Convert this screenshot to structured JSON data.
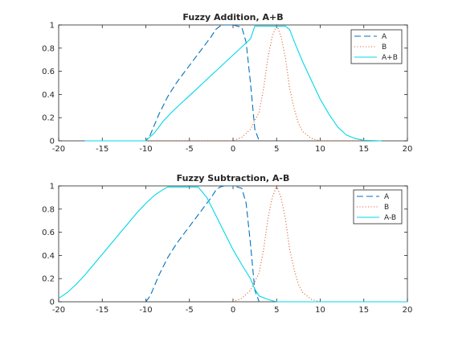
{
  "chart_data": [
    {
      "type": "line",
      "title": "Fuzzy Addition, A+B",
      "xlim": [
        -20,
        20
      ],
      "ylim": [
        0,
        1
      ],
      "xticks": [
        "-20",
        "-15",
        "-10",
        "-5",
        "0",
        "5",
        "10",
        "15",
        "20"
      ],
      "yticks": [
        "0",
        "0.2",
        "0.4",
        "0.6",
        "0.8",
        "1"
      ],
      "legend_position": "top-right",
      "series": [
        {
          "name": "A",
          "color": "#0072BD",
          "dash": "dashed",
          "x": [
            -17,
            -10,
            -9.5,
            -8.5,
            -7.5,
            -6.5,
            -5.5,
            -4.5,
            -3.5,
            -2.5,
            -2,
            -1.5,
            -1,
            0,
            1,
            1.5,
            2,
            2.5,
            3
          ],
          "y": [
            0,
            0,
            0.05,
            0.23,
            0.38,
            0.5,
            0.6,
            0.7,
            0.8,
            0.9,
            0.96,
            0.99,
            1,
            1,
            0.98,
            0.85,
            0.5,
            0.1,
            0
          ]
        },
        {
          "name": "B",
          "color": "#D95319",
          "dash": "dotted",
          "x": [
            -17,
            0,
            1,
            2,
            3,
            3.5,
            4,
            4.5,
            5,
            5.5,
            6,
            6.5,
            7,
            7.5,
            8,
            9,
            10,
            17
          ],
          "y": [
            0,
            0,
            0.03,
            0.1,
            0.25,
            0.45,
            0.72,
            0.9,
            1,
            0.9,
            0.72,
            0.45,
            0.28,
            0.15,
            0.08,
            0.02,
            0,
            0
          ]
        },
        {
          "name": "A+B",
          "color": "#00D8E8",
          "dash": "solid",
          "x": [
            -17,
            -10,
            -9,
            -8,
            -7,
            -6,
            -5,
            -4,
            -3,
            -2,
            -1,
            0,
            1,
            2,
            2.5,
            6,
            6.5,
            7,
            8,
            9,
            10,
            11,
            12,
            13,
            14,
            15,
            17
          ],
          "y": [
            0,
            0,
            0.07,
            0.17,
            0.25,
            0.32,
            0.39,
            0.46,
            0.53,
            0.6,
            0.67,
            0.74,
            0.81,
            0.88,
            0.99,
            0.99,
            0.96,
            0.86,
            0.68,
            0.52,
            0.36,
            0.23,
            0.12,
            0.05,
            0.02,
            0.005,
            0
          ]
        }
      ]
    },
    {
      "type": "line",
      "title": "Fuzzy Subtraction, A-B",
      "xlim": [
        -20,
        20
      ],
      "ylim": [
        0,
        1
      ],
      "xticks": [
        "-20",
        "-15",
        "-10",
        "-5",
        "0",
        "5",
        "10",
        "15",
        "20"
      ],
      "yticks": [
        "0",
        "0.2",
        "0.4",
        "0.6",
        "0.8",
        "1"
      ],
      "legend_position": "top-right",
      "series": [
        {
          "name": "A",
          "color": "#0072BD",
          "dash": "dashed",
          "x": [
            -10,
            -9.5,
            -8.5,
            -7.5,
            -6.5,
            -5.5,
            -4.5,
            -3.5,
            -2.5,
            -2,
            -1.5,
            -1,
            0,
            1,
            1.5,
            2,
            2.5,
            3
          ],
          "y": [
            0,
            0.05,
            0.23,
            0.38,
            0.5,
            0.6,
            0.7,
            0.8,
            0.9,
            0.96,
            0.99,
            1,
            1,
            0.98,
            0.85,
            0.5,
            0.1,
            0
          ]
        },
        {
          "name": "B",
          "color": "#D95319",
          "dash": "dotted",
          "x": [
            0,
            1,
            2,
            3,
            3.5,
            4,
            4.5,
            5,
            5.5,
            6,
            6.5,
            7,
            7.5,
            8,
            9,
            10
          ],
          "y": [
            0,
            0.03,
            0.1,
            0.25,
            0.45,
            0.72,
            0.9,
            1,
            0.9,
            0.72,
            0.45,
            0.28,
            0.15,
            0.08,
            0.02,
            0
          ]
        },
        {
          "name": "A-B",
          "color": "#00D8E8",
          "dash": "solid",
          "x": [
            -20,
            -19,
            -18,
            -17,
            -16,
            -15,
            -14,
            -13,
            -12,
            -11,
            -10,
            -9,
            -8,
            -7.5,
            -4,
            -3,
            -2,
            -1,
            0,
            1,
            2,
            2.5,
            3,
            4,
            5,
            20
          ],
          "y": [
            0.03,
            0.08,
            0.15,
            0.23,
            0.32,
            0.41,
            0.5,
            0.59,
            0.68,
            0.77,
            0.85,
            0.92,
            0.97,
            0.99,
            0.99,
            0.9,
            0.75,
            0.6,
            0.45,
            0.32,
            0.2,
            0.11,
            0.05,
            0.02,
            0,
            0
          ]
        }
      ]
    }
  ]
}
